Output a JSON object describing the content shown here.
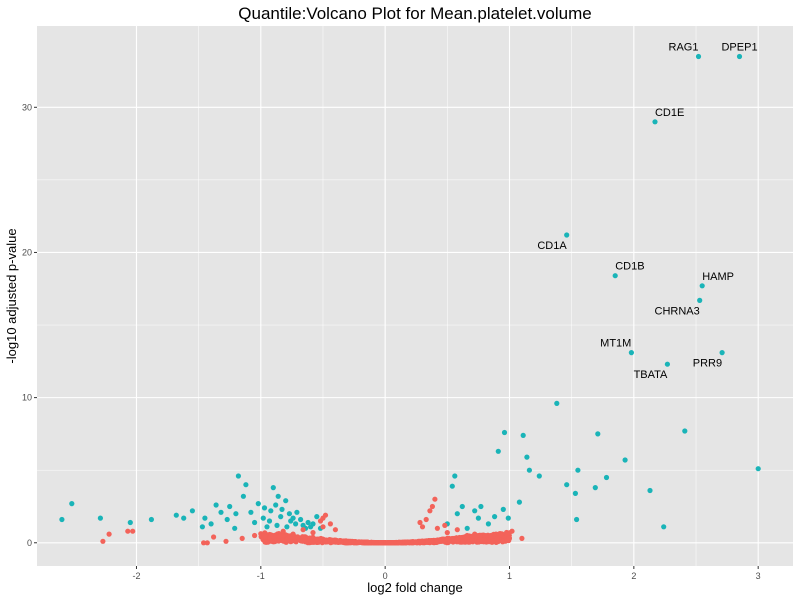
{
  "chart_data": {
    "type": "scatter",
    "title": "Quantile:Volcano Plot for Mean.platelet.volume",
    "xlabel": "log2 fold change",
    "ylabel": "-log10 adjusted p-value",
    "xlim": [
      -2.8,
      3.28
    ],
    "ylim": [
      -1.6,
      35.6
    ],
    "x_ticks": [
      -2,
      -1,
      0,
      1,
      2,
      3
    ],
    "y_ticks": [
      0,
      10,
      20,
      30
    ],
    "grid": true,
    "legend": "none",
    "colors": {
      "panel": "#e5e5e5",
      "grid": "#ffffff",
      "significant": "#1ab4b8",
      "not_significant": "#f3635a"
    },
    "series": [
      {
        "color": "#1ab4b8",
        "points": [
          [
            2.52,
            33.5
          ],
          [
            2.85,
            33.5
          ],
          [
            2.17,
            29.0
          ],
          [
            1.46,
            21.2
          ],
          [
            1.85,
            18.4
          ],
          [
            2.55,
            17.7
          ],
          [
            2.53,
            16.7
          ],
          [
            1.98,
            13.1
          ],
          [
            2.71,
            13.1
          ],
          [
            2.27,
            12.3
          ],
          [
            1.38,
            9.6
          ],
          [
            2.41,
            7.7
          ],
          [
            0.96,
            7.6
          ],
          [
            1.71,
            7.5
          ],
          [
            1.11,
            7.4
          ],
          [
            0.91,
            6.3
          ],
          [
            1.14,
            5.9
          ],
          [
            1.93,
            5.7
          ],
          [
            3.0,
            5.1
          ],
          [
            1.16,
            5.0
          ],
          [
            1.55,
            5.0
          ],
          [
            1.24,
            4.6
          ],
          [
            1.78,
            4.5
          ],
          [
            1.46,
            4.0
          ],
          [
            1.69,
            3.8
          ],
          [
            1.53,
            3.4
          ],
          [
            2.13,
            3.6
          ],
          [
            1.54,
            1.6
          ],
          [
            2.24,
            1.1
          ],
          [
            1.08,
            2.8
          ],
          [
            0.95,
            2.3
          ],
          [
            0.99,
            1.7
          ],
          [
            0.77,
            2.5
          ],
          [
            0.75,
            1.7
          ],
          [
            0.56,
            4.6
          ],
          [
            0.54,
            3.9
          ],
          [
            0.62,
            2.5
          ],
          [
            0.72,
            2.2
          ],
          [
            0.5,
            1.3
          ],
          [
            0.66,
            1.0
          ],
          [
            0.83,
            1.3
          ],
          [
            0.88,
            1.8
          ],
          [
            0.58,
            2.0
          ],
          [
            -2.6,
            1.6
          ],
          [
            -2.52,
            2.7
          ],
          [
            -2.29,
            1.7
          ],
          [
            -2.05,
            1.4
          ],
          [
            -1.88,
            1.6
          ],
          [
            -1.68,
            1.9
          ],
          [
            -1.62,
            1.7
          ],
          [
            -1.55,
            2.2
          ],
          [
            -1.45,
            1.7
          ],
          [
            -1.4,
            1.3
          ],
          [
            -1.47,
            1.1
          ],
          [
            -1.36,
            2.6
          ],
          [
            -1.32,
            2.1
          ],
          [
            -1.27,
            1.6
          ],
          [
            -1.2,
            2.0
          ],
          [
            -1.18,
            4.6
          ],
          [
            -1.12,
            4.0
          ],
          [
            -1.25,
            2.5
          ],
          [
            -1.21,
            1.0
          ],
          [
            -1.14,
            3.2
          ],
          [
            -1.08,
            2.1
          ],
          [
            -1.02,
            2.7
          ],
          [
            -0.98,
            1.7
          ],
          [
            -0.93,
            1.5
          ],
          [
            -0.9,
            3.8
          ],
          [
            -0.86,
            3.2
          ],
          [
            -0.88,
            2.6
          ],
          [
            -0.83,
            2.3
          ],
          [
            -0.8,
            2.9
          ],
          [
            -0.77,
            2.0
          ],
          [
            -0.74,
            1.7
          ],
          [
            -0.71,
            2.1
          ],
          [
            -0.68,
            1.6
          ],
          [
            -0.66,
            1.2
          ],
          [
            -0.62,
            1.4
          ],
          [
            -0.58,
            1.3
          ],
          [
            -0.55,
            1.8
          ],
          [
            -0.52,
            1.0
          ],
          [
            -0.95,
            1.1
          ],
          [
            -0.87,
            1.2
          ],
          [
            -0.79,
            1.1
          ],
          [
            -0.72,
            1.3
          ],
          [
            -0.64,
            1.0
          ],
          [
            -1.05,
            1.4
          ],
          [
            -0.92,
            2.2
          ],
          [
            -0.84,
            1.8
          ],
          [
            -0.76,
            1.5
          ],
          [
            -0.6,
            1.1
          ],
          [
            -0.97,
            2.4
          ]
        ]
      },
      {
        "color": "#f3635a",
        "points": [
          [
            -2.27,
            0.1
          ],
          [
            -2.22,
            0.6
          ],
          [
            -2.07,
            0.8
          ],
          [
            -2.03,
            0.8
          ],
          [
            -1.43,
            0.0
          ],
          [
            -1.46,
            0.0
          ],
          [
            -1.38,
            0.4
          ],
          [
            -1.28,
            0.1
          ],
          [
            -1.15,
            0.3
          ],
          [
            -1.05,
            0.5
          ],
          [
            -0.5,
            1.7
          ],
          [
            -0.48,
            1.9
          ],
          [
            -0.52,
            1.5
          ],
          [
            0.38,
            2.5
          ],
          [
            0.36,
            2.2
          ],
          [
            0.4,
            3.0
          ],
          [
            0.28,
            1.4
          ],
          [
            0.3,
            1.1
          ],
          [
            0.9,
            0.3
          ],
          [
            1.02,
            0.8
          ],
          [
            1.1,
            0.3
          ],
          [
            0.95,
            0.1
          ],
          [
            0.85,
            0.4
          ],
          [
            0.8,
            0.2
          ],
          [
            0.72,
            0.6
          ],
          [
            -0.92,
            0.5
          ],
          [
            -0.82,
            0.8
          ],
          [
            -0.74,
            0.6
          ],
          [
            -0.66,
            0.9
          ],
          [
            -0.58,
            0.7
          ],
          [
            -0.5,
            1.1
          ],
          [
            -0.44,
            1.3
          ],
          [
            -0.4,
            0.9
          ],
          [
            0.42,
            1.0
          ],
          [
            0.5,
            0.7
          ],
          [
            0.58,
            0.9
          ],
          [
            0.66,
            0.5
          ],
          [
            0.48,
            1.2
          ],
          [
            0.33,
            1.6
          ]
        ],
        "cloud": {
          "x_range": [
            -1.0,
            1.0
          ],
          "y_peak": 1.0,
          "n": 1400
        }
      }
    ],
    "annotations": [
      {
        "text": "RAG1",
        "x": 2.52,
        "y": 33.5,
        "anchor": "end",
        "dy": -6
      },
      {
        "text": "DPEP1",
        "x": 2.85,
        "y": 33.5,
        "anchor": "middle",
        "dy": -6
      },
      {
        "text": "CD1E",
        "x": 2.17,
        "y": 29.0,
        "anchor": "start",
        "dy": -6
      },
      {
        "text": "CD1A",
        "x": 1.46,
        "y": 21.2,
        "anchor": "end",
        "dy": 14
      },
      {
        "text": "CD1B",
        "x": 1.85,
        "y": 18.4,
        "anchor": "start",
        "dy": -6
      },
      {
        "text": "HAMP",
        "x": 2.55,
        "y": 17.7,
        "anchor": "start",
        "dy": -6
      },
      {
        "text": "CHRNA3",
        "x": 2.53,
        "y": 16.7,
        "anchor": "end",
        "dy": 14
      },
      {
        "text": "MT1M",
        "x": 1.98,
        "y": 13.1,
        "anchor": "end",
        "dy": -6
      },
      {
        "text": "PRR9",
        "x": 2.71,
        "y": 13.1,
        "anchor": "end",
        "dy": 14
      },
      {
        "text": "TBATA",
        "x": 2.27,
        "y": 12.3,
        "anchor": "end",
        "dy": 14
      }
    ]
  }
}
